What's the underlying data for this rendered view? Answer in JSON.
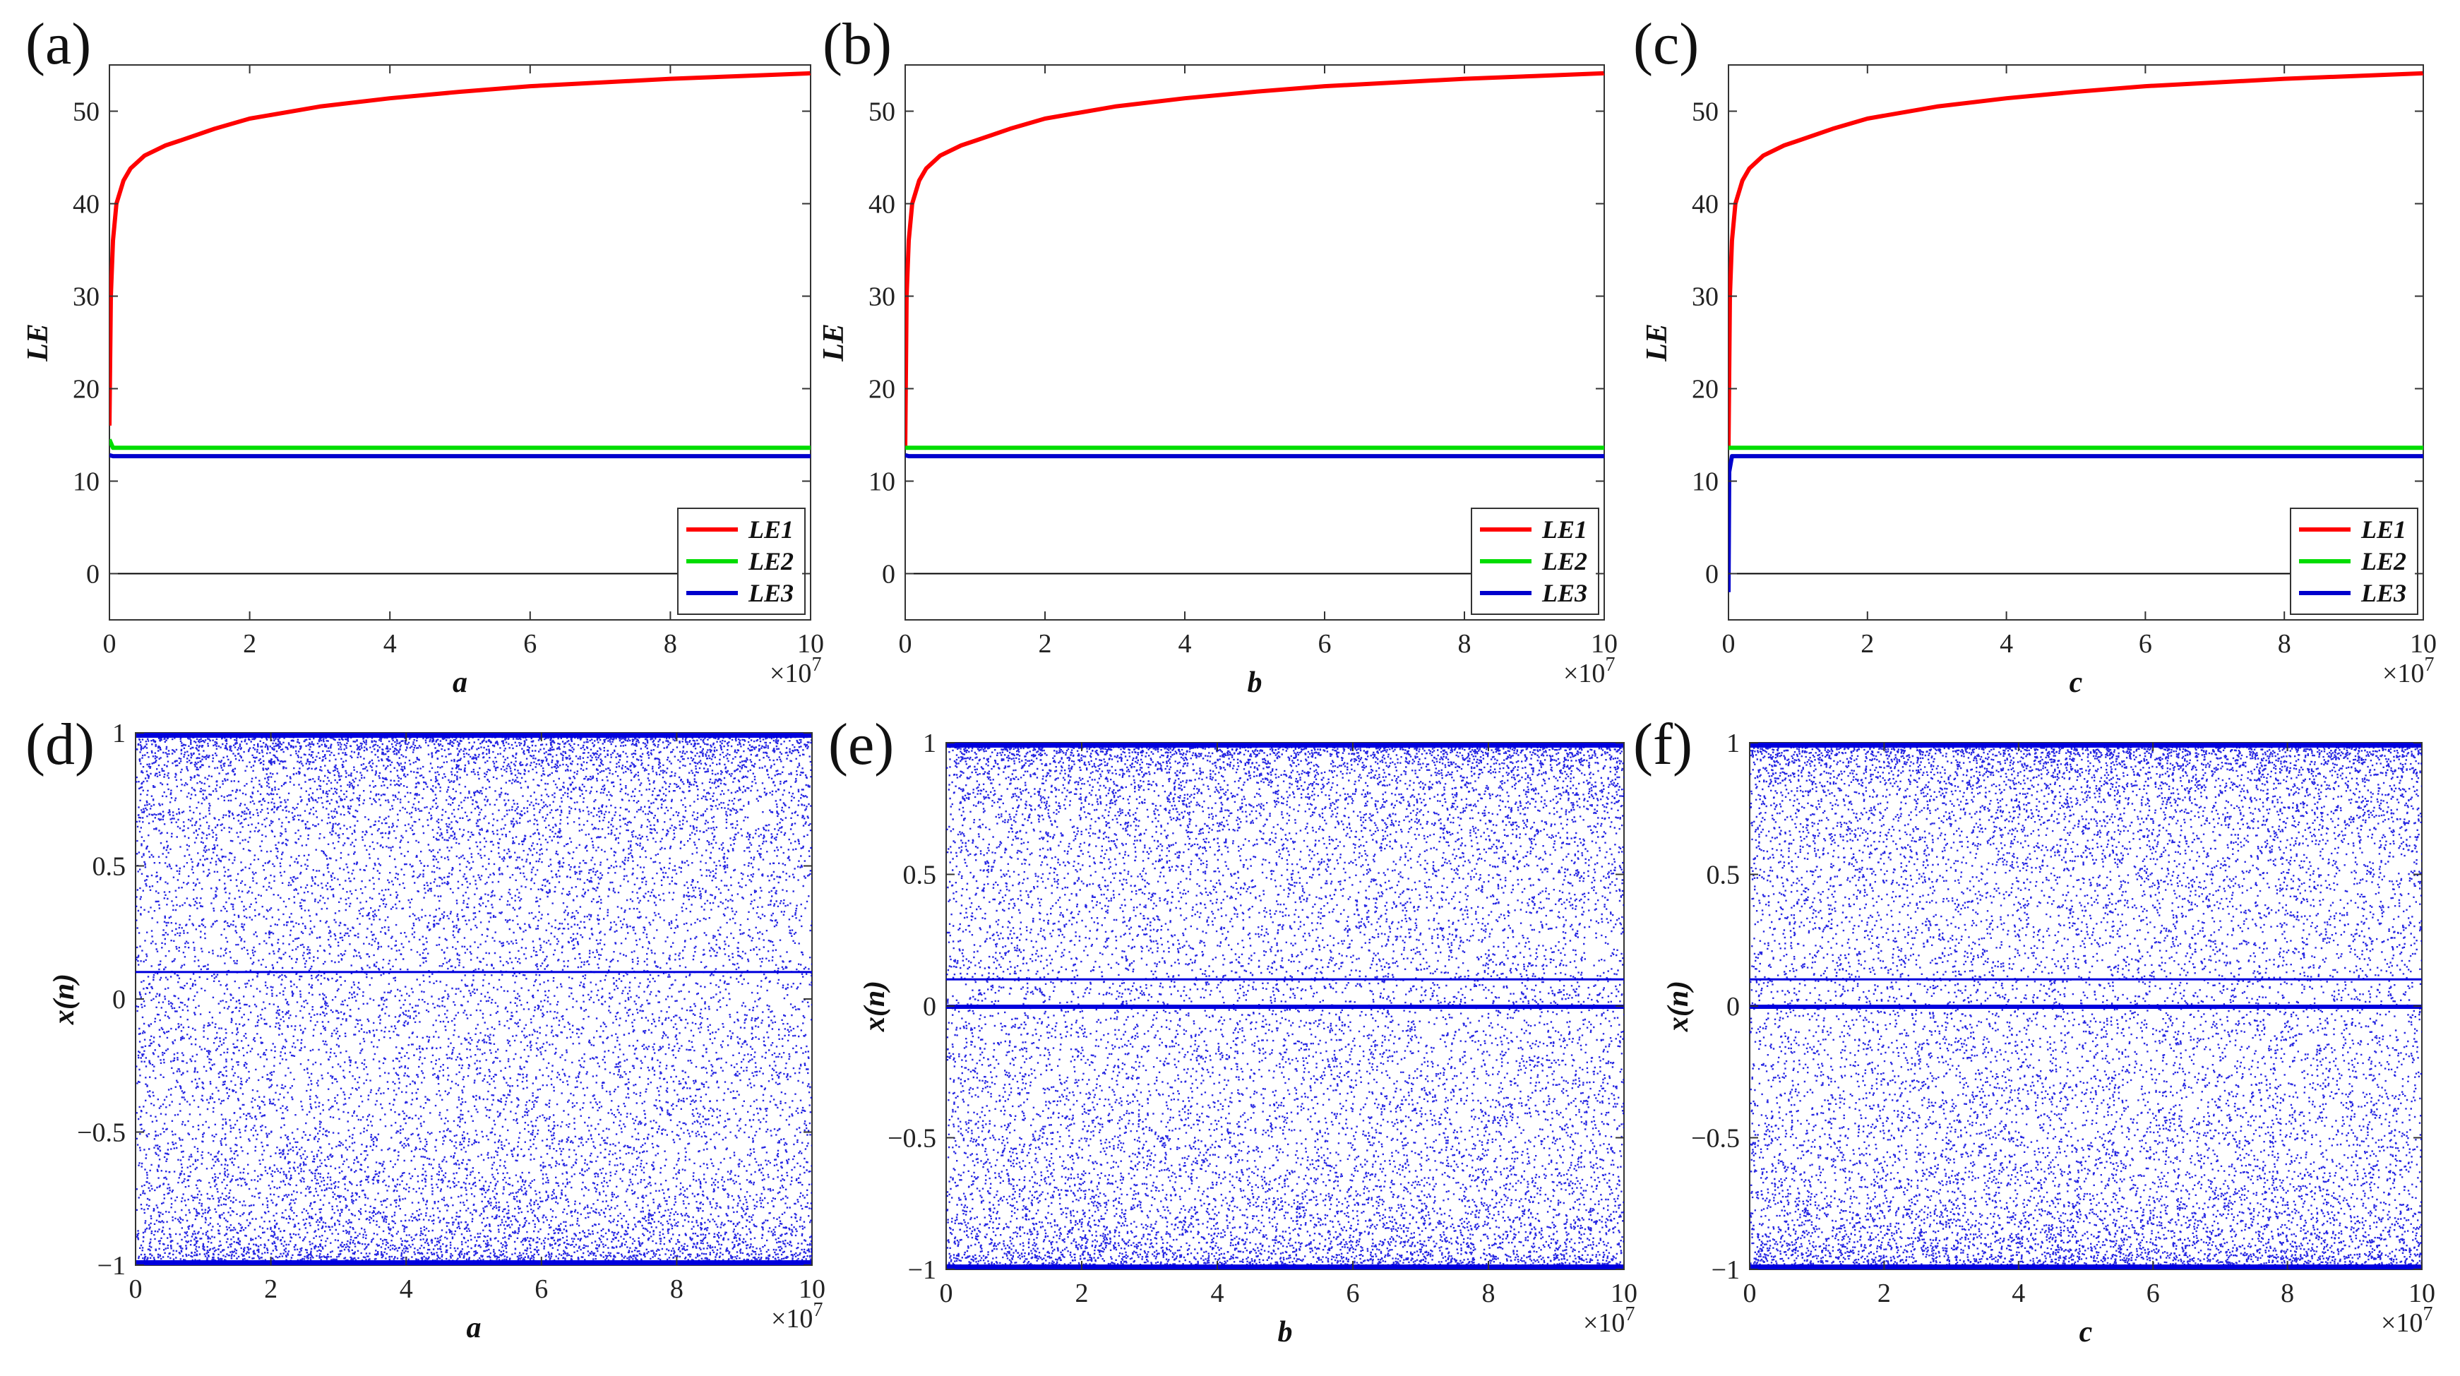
{
  "colors": {
    "le1": "#ff0000",
    "le2": "#00dd00",
    "le3": "#0000cc",
    "scatter": "#0000dd",
    "axis": "#333333",
    "zero_line": "#000000"
  },
  "chart_data": [
    {
      "id": "a",
      "panel_label": "(a)",
      "type": "line",
      "xlabel": "a",
      "ylabel": "LE",
      "x_multiplier": "×10",
      "x_multiplier_exp": "7",
      "xlim": [
        0,
        10
      ],
      "ylim": [
        -5,
        55
      ],
      "xticks": [
        0,
        2,
        4,
        6,
        8,
        10
      ],
      "yticks": [
        0,
        10,
        20,
        30,
        40,
        50
      ],
      "legend_position": "bottom-right",
      "zero_line": true,
      "series": [
        {
          "name": "LE1",
          "color_key": "le1",
          "x": [
            0,
            0.02,
            0.05,
            0.1,
            0.2,
            0.3,
            0.5,
            0.8,
            1,
            1.5,
            2,
            3,
            4,
            5,
            6,
            7,
            8,
            9,
            10
          ],
          "y": [
            16,
            30,
            36,
            40,
            42.5,
            43.8,
            45.2,
            46.3,
            46.8,
            48.1,
            49.2,
            50.5,
            51.4,
            52.1,
            52.7,
            53.1,
            53.5,
            53.8,
            54.1
          ]
        },
        {
          "name": "LE2",
          "color_key": "le2",
          "x": [
            0,
            0.05,
            10
          ],
          "y": [
            14.5,
            13.6,
            13.6
          ]
        },
        {
          "name": "LE3",
          "color_key": "le3",
          "x": [
            0,
            0.05,
            10
          ],
          "y": [
            12.8,
            12.7,
            12.7
          ]
        }
      ]
    },
    {
      "id": "b",
      "panel_label": "(b)",
      "type": "line",
      "xlabel": "b",
      "ylabel": "LE",
      "x_multiplier": "×10",
      "x_multiplier_exp": "7",
      "xlim": [
        0,
        10
      ],
      "ylim": [
        -5,
        55
      ],
      "xticks": [
        0,
        2,
        4,
        6,
        8,
        10
      ],
      "yticks": [
        0,
        10,
        20,
        30,
        40,
        50
      ],
      "legend_position": "bottom-right",
      "zero_line": true,
      "series": [
        {
          "name": "LE1",
          "color_key": "le1",
          "x": [
            0,
            0.02,
            0.05,
            0.1,
            0.2,
            0.3,
            0.5,
            0.8,
            1,
            1.5,
            2,
            3,
            4,
            5,
            6,
            7,
            8,
            9,
            10
          ],
          "y": [
            13.5,
            30,
            36,
            40,
            42.5,
            43.8,
            45.2,
            46.3,
            46.8,
            48.1,
            49.2,
            50.5,
            51.4,
            52.1,
            52.7,
            53.1,
            53.5,
            53.8,
            54.1
          ]
        },
        {
          "name": "LE2",
          "color_key": "le2",
          "x": [
            0,
            0.05,
            10
          ],
          "y": [
            13.6,
            13.6,
            13.6
          ]
        },
        {
          "name": "LE3",
          "color_key": "le3",
          "x": [
            0,
            0.05,
            10
          ],
          "y": [
            12.8,
            12.7,
            12.7
          ]
        }
      ]
    },
    {
      "id": "c",
      "panel_label": "(c)",
      "type": "line",
      "xlabel": "c",
      "ylabel": "LE",
      "x_multiplier": "×10",
      "x_multiplier_exp": "7",
      "xlim": [
        0,
        10
      ],
      "ylim": [
        -5,
        55
      ],
      "xticks": [
        0,
        2,
        4,
        6,
        8,
        10
      ],
      "yticks": [
        0,
        10,
        20,
        30,
        40,
        50
      ],
      "legend_position": "bottom-right",
      "zero_line": true,
      "series": [
        {
          "name": "LE1",
          "color_key": "le1",
          "x": [
            0,
            0.02,
            0.05,
            0.1,
            0.2,
            0.3,
            0.5,
            0.8,
            1,
            1.5,
            2,
            3,
            4,
            5,
            6,
            7,
            8,
            9,
            10
          ],
          "y": [
            13.5,
            30,
            36,
            40,
            42.5,
            43.8,
            45.2,
            46.3,
            46.8,
            48.1,
            49.2,
            50.5,
            51.4,
            52.1,
            52.7,
            53.1,
            53.5,
            53.8,
            54.1
          ]
        },
        {
          "name": "LE2",
          "color_key": "le2",
          "x": [
            0,
            0.05,
            10
          ],
          "y": [
            13.6,
            13.6,
            13.6
          ]
        },
        {
          "name": "LE3",
          "color_key": "le3",
          "x": [
            0,
            0.01,
            0.05,
            10
          ],
          "y": [
            -2,
            11,
            12.7,
            12.7
          ]
        }
      ]
    },
    {
      "id": "d",
      "panel_label": "(d)",
      "type": "scatter",
      "xlabel": "a",
      "ylabel": "x(n)",
      "x_multiplier": "×10",
      "x_multiplier_exp": "7",
      "xlim": [
        0,
        10
      ],
      "ylim": [
        -1,
        1
      ],
      "xticks": [
        0,
        2,
        4,
        6,
        8,
        10
      ],
      "yticks": [
        -1,
        -0.5,
        0,
        0.5,
        1
      ],
      "ytick_labels": [
        "−1",
        "−0.5",
        "0",
        "0.5",
        "1"
      ],
      "y_range": [
        -1,
        1
      ],
      "dense_bands": [
        0.1
      ]
    },
    {
      "id": "e",
      "panel_label": "(e)",
      "type": "scatter",
      "xlabel": "b",
      "ylabel": "x(n)",
      "x_multiplier": "×10",
      "x_multiplier_exp": "7",
      "xlim": [
        0,
        10
      ],
      "ylim": [
        -1,
        1
      ],
      "xticks": [
        0,
        2,
        4,
        6,
        8,
        10
      ],
      "yticks": [
        -1,
        -0.5,
        0,
        0.5,
        1
      ],
      "ytick_labels": [
        "−1",
        "−0.5",
        "0",
        "0.5",
        "1"
      ],
      "y_range": [
        -1,
        1
      ],
      "dense_bands": [
        0,
        0.1
      ]
    },
    {
      "id": "f",
      "panel_label": "(f)",
      "type": "scatter",
      "xlabel": "c",
      "ylabel": "x(n)",
      "x_multiplier": "×10",
      "x_multiplier_exp": "7",
      "xlim": [
        0,
        10
      ],
      "ylim": [
        -1,
        1
      ],
      "xticks": [
        0,
        2,
        4,
        6,
        8,
        10
      ],
      "yticks": [
        -1,
        -0.5,
        0,
        0.5,
        1
      ],
      "ytick_labels": [
        "−1",
        "−0.5",
        "0",
        "0.5",
        "1"
      ],
      "y_range": [
        -1,
        1
      ],
      "dense_bands": [
        0,
        0.1
      ]
    }
  ]
}
